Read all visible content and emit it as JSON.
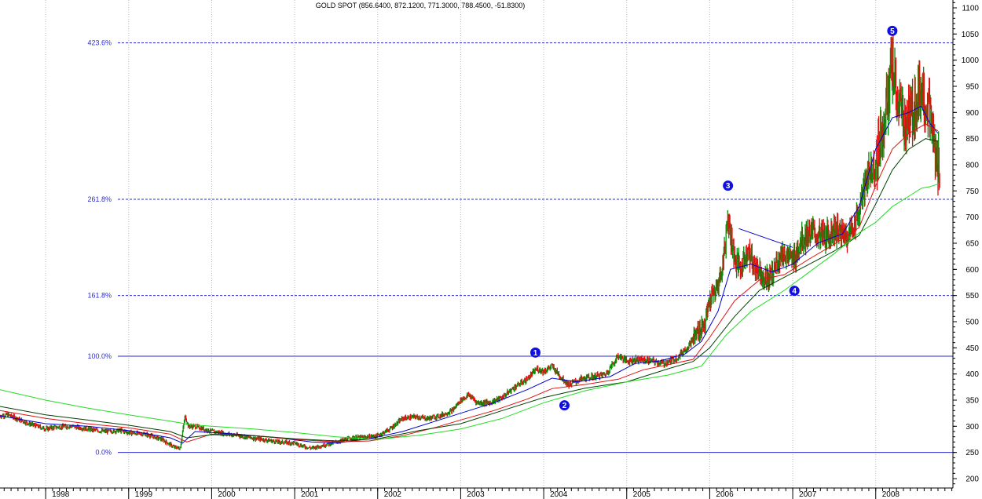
{
  "chart_data": {
    "type": "candlestick",
    "title": "GOLD SPOT (856.6400, 872.1200, 771.3000, 788.4500, -51.8300)",
    "x_ticks": [
      "1998",
      "1999",
      "2000",
      "2001",
      "2002",
      "2003",
      "2004",
      "2005",
      "2006",
      "2007",
      "2008"
    ],
    "y_ticks": [
      200,
      250,
      300,
      350,
      400,
      450,
      500,
      550,
      600,
      650,
      700,
      750,
      800,
      850,
      900,
      950,
      1000,
      1050,
      1100
    ],
    "ylim": [
      182,
      1115
    ],
    "xlim": [
      1997.45,
      2008.93
    ],
    "axis_position": "right",
    "grid": "dotted vertical year lines",
    "fib_levels": [
      {
        "label": "0.0%",
        "value": 250,
        "style": "solid"
      },
      {
        "label": "100.0%",
        "value": 434,
        "style": "solid"
      },
      {
        "label": "161.8%",
        "value": 550,
        "style": "dashed"
      },
      {
        "label": "261.8%",
        "value": 734,
        "style": "dashed"
      },
      {
        "label": "423.6%",
        "value": 1033,
        "style": "dashed"
      }
    ],
    "wave_labels": [
      {
        "label": "1",
        "x": 2003.9,
        "value": 441,
        "anchor": "above"
      },
      {
        "label": "2",
        "x": 2004.25,
        "value": 340,
        "anchor": "below"
      },
      {
        "label": "3",
        "x": 2006.22,
        "value": 760,
        "anchor": "above"
      },
      {
        "label": "4",
        "x": 2007.02,
        "value": 559,
        "anchor": "below"
      },
      {
        "label": "5",
        "x": 2008.2,
        "value": 1056,
        "anchor": "above"
      }
    ],
    "price_series": {
      "up_color": "#0a8a0a",
      "down_color": "#e01010",
      "x": [
        1997.45,
        1997.55,
        1997.65,
        1997.8,
        1997.9,
        1998.0,
        1998.1,
        1998.3,
        1998.5,
        1998.7,
        1998.9,
        1999.0,
        1999.2,
        1999.4,
        1999.55,
        1999.62,
        1999.68,
        1999.72,
        1999.8,
        1999.9,
        2000.0,
        2000.1,
        2000.2,
        2000.4,
        2000.6,
        2000.8,
        2001.0,
        2001.1,
        2001.2,
        2001.3,
        2001.5,
        2001.7,
        2001.9,
        2002.0,
        2002.15,
        2002.3,
        2002.45,
        2002.6,
        2002.75,
        2002.9,
        2003.0,
        2003.1,
        2003.2,
        2003.35,
        2003.5,
        2003.65,
        2003.8,
        2003.92,
        2004.0,
        2004.1,
        2004.2,
        2004.3,
        2004.45,
        2004.6,
        2004.75,
        2004.9,
        2005.0,
        2005.15,
        2005.3,
        2005.45,
        2005.6,
        2005.75,
        2005.85,
        2005.95,
        2006.0,
        2006.08,
        2006.15,
        2006.22,
        2006.3,
        2006.38,
        2006.45,
        2006.52,
        2006.6,
        2006.68,
        2006.75,
        2006.82,
        2006.9,
        2007.0,
        2007.1,
        2007.2,
        2007.3,
        2007.4,
        2007.5,
        2007.6,
        2007.7,
        2007.8,
        2007.9,
        2008.0,
        2008.08,
        2008.15,
        2008.2,
        2008.25,
        2008.35,
        2008.45,
        2008.55,
        2008.62,
        2008.68,
        2008.72,
        2008.77
      ],
      "close": [
        320,
        322,
        315,
        305,
        300,
        295,
        298,
        300,
        295,
        290,
        292,
        288,
        285,
        275,
        260,
        258,
        320,
        300,
        300,
        295,
        290,
        288,
        285,
        280,
        275,
        270,
        268,
        262,
        258,
        262,
        270,
        278,
        280,
        282,
        295,
        315,
        318,
        315,
        320,
        330,
        350,
        360,
        345,
        345,
        355,
        375,
        390,
        410,
        405,
        415,
        395,
        380,
        390,
        395,
        400,
        435,
        425,
        428,
        425,
        420,
        430,
        455,
        480,
        500,
        540,
        560,
        600,
        700,
        620,
        600,
        640,
        610,
        600,
        580,
        590,
        620,
        630,
        615,
        655,
        670,
        665,
        660,
        680,
        665,
        670,
        710,
        780,
        800,
        870,
        930,
        990,
        930,
        880,
        900,
        950,
        910,
        870,
        810,
        790
      ]
    },
    "series": [
      {
        "color": "#0000d0",
        "x": [
          1997.45,
          1998.0,
          1998.5,
          1999.0,
          1999.5,
          1999.65,
          1999.8,
          2000.3,
          2000.8,
          2001.2,
          2001.5,
          2001.9,
          2002.3,
          2002.7,
          2003.0,
          2003.4,
          2003.8,
          2004.1,
          2004.4,
          2004.8,
          2005.1,
          2005.4,
          2005.7,
          2005.9,
          2006.1,
          2006.25,
          2006.5,
          2006.75,
          2007.0,
          2007.3,
          2007.6,
          2007.8,
          2008.0,
          2008.2,
          2008.4,
          2008.55,
          2008.65,
          2008.75
        ],
        "values": [
          320,
          305,
          300,
          292,
          278,
          268,
          290,
          285,
          278,
          270,
          268,
          276,
          290,
          310,
          325,
          345,
          370,
          392,
          385,
          395,
          420,
          425,
          438,
          462,
          520,
          600,
          610,
          595,
          610,
          650,
          668,
          720,
          830,
          890,
          900,
          912,
          880,
          860
        ]
      },
      {
        "color": "#e01010",
        "x": [
          1997.45,
          1998.0,
          1998.5,
          1999.0,
          1999.5,
          1999.7,
          2000.0,
          2000.5,
          2001.0,
          2001.5,
          2001.9,
          2002.3,
          2002.7,
          2003.0,
          2003.4,
          2003.8,
          2004.1,
          2004.5,
          2004.9,
          2005.2,
          2005.5,
          2005.8,
          2006.0,
          2006.3,
          2006.6,
          2006.9,
          2007.2,
          2007.5,
          2007.8,
          2008.0,
          2008.2,
          2008.4,
          2008.6,
          2008.75
        ],
        "values": [
          330,
          315,
          305,
          297,
          285,
          270,
          285,
          282,
          275,
          270,
          272,
          282,
          298,
          312,
          330,
          352,
          372,
          380,
          390,
          408,
          418,
          428,
          470,
          540,
          580,
          590,
          620,
          648,
          680,
          760,
          830,
          860,
          878,
          865
        ]
      },
      {
        "color": "#004000",
        "x": [
          1997.45,
          1998.0,
          1998.5,
          1999.0,
          1999.5,
          1999.7,
          2000.0,
          2000.5,
          2001.0,
          2001.5,
          2002.0,
          2002.5,
          2003.0,
          2003.5,
          2004.0,
          2004.5,
          2005.0,
          2005.5,
          2005.8,
          2006.0,
          2006.3,
          2006.6,
          2006.9,
          2007.2,
          2007.5,
          2007.8,
          2008.0,
          2008.2,
          2008.4,
          2008.6,
          2008.75
        ],
        "values": [
          338,
          322,
          312,
          302,
          290,
          278,
          284,
          282,
          276,
          272,
          276,
          292,
          305,
          330,
          355,
          373,
          385,
          410,
          424,
          450,
          510,
          560,
          585,
          610,
          635,
          665,
          725,
          790,
          830,
          850,
          845
        ]
      },
      {
        "color": "#22dd22",
        "x": [
          1997.45,
          1998.0,
          1998.5,
          1999.0,
          1999.5,
          1999.75,
          2000.0,
          2000.5,
          2001.0,
          2001.5,
          2002.0,
          2002.5,
          2003.0,
          2003.5,
          2004.0,
          2004.5,
          2005.0,
          2005.5,
          2005.9,
          2006.2,
          2006.5,
          2006.9,
          2007.2,
          2007.5,
          2007.8,
          2008.0,
          2008.2,
          2008.4,
          2008.55,
          2008.65,
          2008.75
        ],
        "values": [
          370,
          350,
          335,
          322,
          310,
          303,
          300,
          295,
          288,
          280,
          275,
          283,
          295,
          315,
          345,
          368,
          385,
          398,
          415,
          475,
          520,
          560,
          595,
          630,
          670,
          690,
          720,
          740,
          755,
          758,
          763
        ]
      }
    ],
    "trendline": {
      "color": "#0000d0",
      "x": [
        2006.35,
        2007.0
      ],
      "values": [
        678,
        642
      ]
    }
  }
}
